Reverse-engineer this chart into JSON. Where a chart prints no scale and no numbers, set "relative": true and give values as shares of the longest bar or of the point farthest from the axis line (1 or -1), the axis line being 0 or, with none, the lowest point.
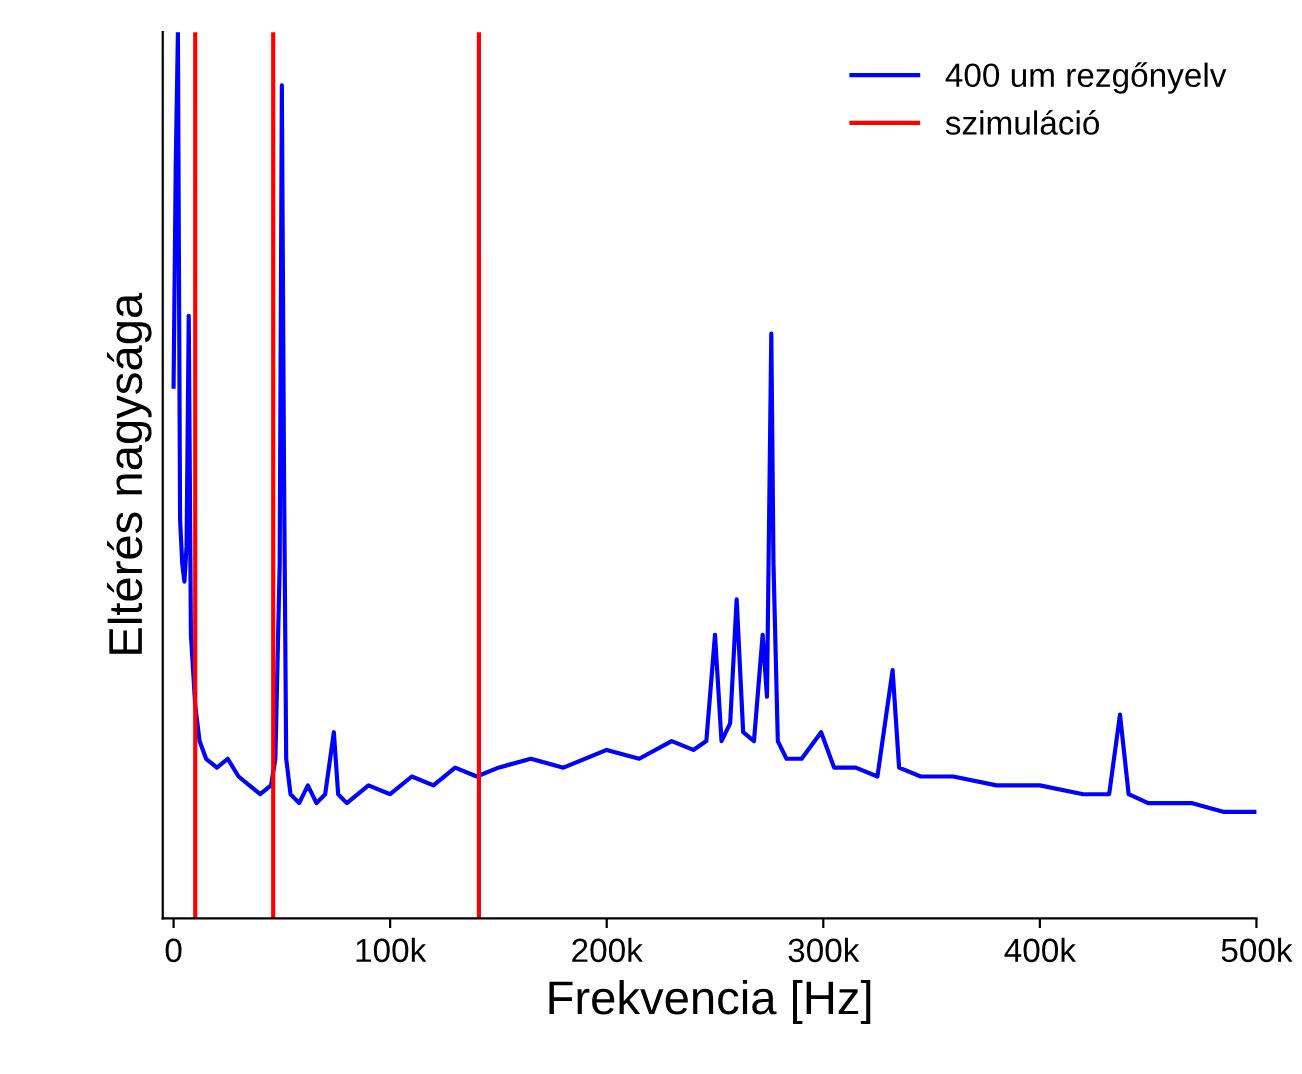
{
  "chart_data": {
    "type": "line",
    "relative": true,
    "xlabel": "Frekvencia [Hz]",
    "ylabel": "Eltérés nagysága",
    "xlim": [
      -5000,
      500000
    ],
    "xticks": [
      {
        "value": 0,
        "label": "0"
      },
      {
        "value": 100000,
        "label": "100k"
      },
      {
        "value": 200000,
        "label": "200k"
      },
      {
        "value": 300000,
        "label": "300k"
      },
      {
        "value": 400000,
        "label": "400k"
      },
      {
        "value": 500000,
        "label": "500k"
      }
    ],
    "tick_labels": "x",
    "legend": "top right",
    "grid": false,
    "series": [
      {
        "name": "400 um rezgőnyelv",
        "color": "#0000ff",
        "x": [
          0,
          1000,
          2000,
          3000,
          4000,
          5000,
          6000,
          7000,
          8000,
          10000,
          12000,
          15000,
          20000,
          25000,
          30000,
          35000,
          40000,
          45000,
          47000,
          49000,
          50000,
          51000,
          52000,
          54000,
          58000,
          62000,
          66000,
          70000,
          74000,
          76000,
          80000,
          90000,
          100000,
          110000,
          120000,
          130000,
          140000,
          150000,
          165000,
          180000,
          200000,
          215000,
          230000,
          240000,
          246000,
          250000,
          253000,
          257000,
          260000,
          263000,
          268000,
          272000,
          274000,
          276000,
          277000,
          279000,
          283000,
          290000,
          299000,
          305000,
          315000,
          325000,
          332000,
          335000,
          345000,
          360000,
          380000,
          400000,
          420000,
          432000,
          437000,
          441000,
          450000,
          470000,
          485000,
          500000
        ],
        "values": [
          0.6,
          0.85,
          1.0,
          0.45,
          0.4,
          0.38,
          0.42,
          0.68,
          0.32,
          0.24,
          0.2,
          0.18,
          0.17,
          0.18,
          0.16,
          0.15,
          0.14,
          0.15,
          0.18,
          0.4,
          0.94,
          0.5,
          0.18,
          0.14,
          0.13,
          0.15,
          0.13,
          0.14,
          0.21,
          0.14,
          0.13,
          0.15,
          0.14,
          0.16,
          0.15,
          0.17,
          0.16,
          0.17,
          0.18,
          0.17,
          0.19,
          0.18,
          0.2,
          0.19,
          0.2,
          0.32,
          0.2,
          0.22,
          0.36,
          0.21,
          0.2,
          0.32,
          0.25,
          0.66,
          0.4,
          0.2,
          0.18,
          0.18,
          0.21,
          0.17,
          0.17,
          0.16,
          0.28,
          0.17,
          0.16,
          0.16,
          0.15,
          0.15,
          0.14,
          0.14,
          0.23,
          0.14,
          0.13,
          0.13,
          0.12,
          0.12
        ]
      },
      {
        "name": "szimuláció",
        "color": "#ff0000",
        "x": [
          10000,
          10000,
          null,
          46000,
          46000,
          null,
          141000,
          141000
        ],
        "values": [
          0,
          1,
          null,
          0,
          1,
          null,
          0,
          1
        ]
      }
    ]
  }
}
